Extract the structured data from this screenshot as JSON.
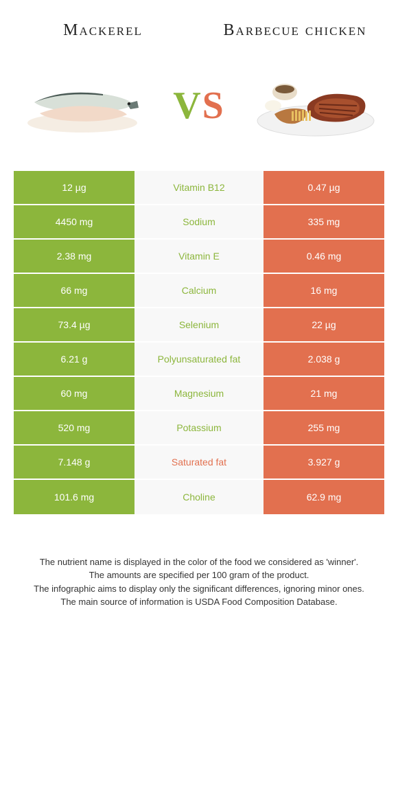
{
  "colors": {
    "left": "#8cb63c",
    "right": "#e2704f",
    "mid_bg": "#f8f8f8",
    "text_white": "#ffffff"
  },
  "header": {
    "left_title": "Mackerel",
    "right_title": "Barbecue chicken",
    "vs_v": "V",
    "vs_s": "S"
  },
  "rows": [
    {
      "left": "12 µg",
      "mid": "Vitamin B12",
      "right": "0.47 µg",
      "winner": "left"
    },
    {
      "left": "4450 mg",
      "mid": "Sodium",
      "right": "335 mg",
      "winner": "left"
    },
    {
      "left": "2.38 mg",
      "mid": "Vitamin E",
      "right": "0.46 mg",
      "winner": "left"
    },
    {
      "left": "66 mg",
      "mid": "Calcium",
      "right": "16 mg",
      "winner": "left"
    },
    {
      "left": "73.4 µg",
      "mid": "Selenium",
      "right": "22 µg",
      "winner": "left"
    },
    {
      "left": "6.21 g",
      "mid": "Polyunsaturated fat",
      "right": "2.038 g",
      "winner": "left"
    },
    {
      "left": "60 mg",
      "mid": "Magnesium",
      "right": "21 mg",
      "winner": "left"
    },
    {
      "left": "520 mg",
      "mid": "Potassium",
      "right": "255 mg",
      "winner": "left"
    },
    {
      "left": "7.148 g",
      "mid": "Saturated fat",
      "right": "3.927 g",
      "winner": "right"
    },
    {
      "left": "101.6 mg",
      "mid": "Choline",
      "right": "62.9 mg",
      "winner": "left"
    }
  ],
  "footnotes": {
    "l1": "The nutrient name is displayed in the color of the food we considered as 'winner'.",
    "l2": "The amounts are specified per 100 gram of the product.",
    "l3": "The infographic aims to display only the significant differences, ignoring minor ones.",
    "l4": "The main source of information is USDA Food Composition Database."
  }
}
